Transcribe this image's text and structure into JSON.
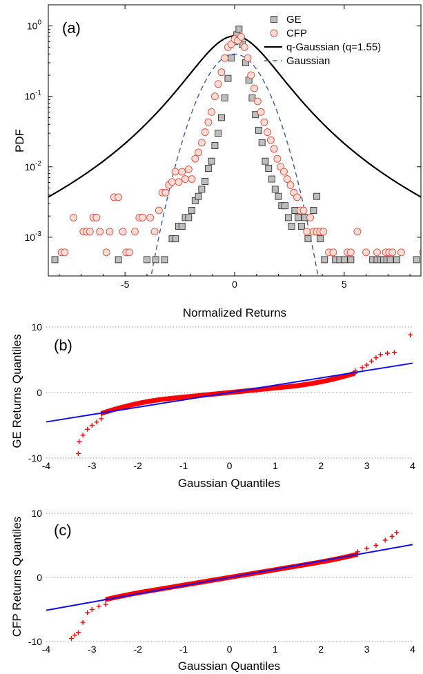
{
  "colors": {
    "ge_marker_fill": "#bdbdbd",
    "cfp_marker_fill": "#f7dcd6",
    "cfp_marker_edge": "#e04d3c",
    "qgauss": "#000000",
    "gauss": "#3b5ba8",
    "qq_points": "#ff0000",
    "qq_line": "#1010ee",
    "grid": "#9a9a9a"
  },
  "chart_data": [
    {
      "id": "a",
      "type": "scatter",
      "panel_label": "(a)",
      "xlabel": "Normalized Returns",
      "ylabel": "PDF",
      "xlim": [
        -8.5,
        8.5
      ],
      "ylim_log10": [
        -3.55,
        0.3
      ],
      "yscale": "log",
      "x_ticks": [
        {
          "v": -5,
          "label": "-5"
        },
        {
          "v": 0,
          "label": "0"
        },
        {
          "v": 5,
          "label": "5"
        }
      ],
      "y_ticks": [
        {
          "v": -3,
          "base": "10",
          "exp": "-3"
        },
        {
          "v": -2,
          "base": "10",
          "exp": "-2"
        },
        {
          "v": -1,
          "base": "10",
          "exp": "-1"
        },
        {
          "v": 0,
          "base": "10",
          "exp": "0"
        }
      ],
      "legend_position": "top-right",
      "series": [
        {
          "name": "GE",
          "kind": "square",
          "points": [
            [
              -8.2,
              0.00048
            ],
            [
              -5.3,
              0.00048
            ],
            [
              -4.0,
              0.00048
            ],
            [
              -3.6,
              0.00048
            ],
            [
              -3.2,
              0.00048
            ],
            [
              -2.85,
              0.00095
            ],
            [
              -2.7,
              0.00095
            ],
            [
              -2.55,
              0.00143
            ],
            [
              -2.4,
              0.00143
            ],
            [
              -2.25,
              0.0019
            ],
            [
              -2.1,
              0.0019
            ],
            [
              -1.95,
              0.0024
            ],
            [
              -1.8,
              0.0033
            ],
            [
              -1.65,
              0.0038
            ],
            [
              -1.5,
              0.0048
            ],
            [
              -1.35,
              0.0062
            ],
            [
              -1.2,
              0.0095
            ],
            [
              -1.05,
              0.012
            ],
            [
              -0.9,
              0.02
            ],
            [
              -0.75,
              0.03
            ],
            [
              -0.6,
              0.05
            ],
            [
              -0.45,
              0.095
            ],
            [
              -0.3,
              0.18
            ],
            [
              -0.15,
              0.35
            ],
            [
              0.0,
              0.6
            ],
            [
              0.1,
              0.75
            ],
            [
              0.2,
              0.9
            ],
            [
              0.35,
              0.55
            ],
            [
              0.5,
              0.3
            ],
            [
              0.65,
              0.17
            ],
            [
              0.8,
              0.095
            ],
            [
              0.95,
              0.055
            ],
            [
              1.1,
              0.033
            ],
            [
              1.25,
              0.022
            ],
            [
              1.4,
              0.012
            ],
            [
              1.55,
              0.0095
            ],
            [
              1.7,
              0.0067
            ],
            [
              1.85,
              0.0048
            ],
            [
              2.0,
              0.0038
            ],
            [
              2.15,
              0.0028
            ],
            [
              2.3,
              0.0028
            ],
            [
              2.45,
              0.0019
            ],
            [
              2.6,
              0.00143
            ],
            [
              2.75,
              0.0024
            ],
            [
              2.9,
              0.0019
            ],
            [
              3.05,
              0.00143
            ],
            [
              3.2,
              0.0019
            ],
            [
              3.35,
              0.00095
            ],
            [
              3.6,
              0.0024
            ],
            [
              3.75,
              0.0038
            ],
            [
              3.9,
              0.00095
            ],
            [
              4.1,
              0.00048
            ],
            [
              4.6,
              0.00048
            ],
            [
              4.8,
              0.00048
            ],
            [
              5.0,
              0.00048
            ],
            [
              5.3,
              0.00048
            ],
            [
              6.3,
              0.00048
            ],
            [
              6.5,
              0.00048
            ],
            [
              6.65,
              0.00048
            ],
            [
              6.8,
              0.00048
            ],
            [
              6.95,
              0.00048
            ],
            [
              7.1,
              0.00048
            ],
            [
              7.4,
              0.00048
            ],
            [
              8.3,
              0.00048
            ]
          ]
        },
        {
          "name": "CFP",
          "kind": "circle",
          "points": [
            [
              -7.9,
              0.00061
            ],
            [
              -7.75,
              0.00061
            ],
            [
              -7.35,
              0.0019
            ],
            [
              -6.9,
              0.0012
            ],
            [
              -6.75,
              0.0012
            ],
            [
              -6.6,
              0.0012
            ],
            [
              -6.45,
              0.0019
            ],
            [
              -6.3,
              0.0019
            ],
            [
              -6.15,
              0.0012
            ],
            [
              -5.85,
              0.00061
            ],
            [
              -5.7,
              0.0012
            ],
            [
              -5.5,
              0.0037
            ],
            [
              -5.3,
              0.0037
            ],
            [
              -5.1,
              0.0012
            ],
            [
              -4.95,
              0.00061
            ],
            [
              -4.8,
              0.00061
            ],
            [
              -4.55,
              0.0012
            ],
            [
              -4.35,
              0.0019
            ],
            [
              -4.2,
              0.0019
            ],
            [
              -3.85,
              0.0019
            ],
            [
              -3.65,
              0.0012
            ],
            [
              -3.45,
              0.0024
            ],
            [
              -3.3,
              0.0043
            ],
            [
              -3.15,
              0.0043
            ],
            [
              -3.0,
              0.0055
            ],
            [
              -2.85,
              0.0061
            ],
            [
              -2.7,
              0.0085
            ],
            [
              -2.55,
              0.0061
            ],
            [
              -2.4,
              0.0085
            ],
            [
              -2.25,
              0.0067
            ],
            [
              -2.1,
              0.0092
            ],
            [
              -1.95,
              0.0067
            ],
            [
              -1.8,
              0.013
            ],
            [
              -1.65,
              0.016
            ],
            [
              -1.5,
              0.022
            ],
            [
              -1.35,
              0.031
            ],
            [
              -1.2,
              0.043
            ],
            [
              -1.05,
              0.06
            ],
            [
              -0.9,
              0.1
            ],
            [
              -0.75,
              0.15
            ],
            [
              -0.6,
              0.22
            ],
            [
              -0.45,
              0.35
            ],
            [
              -0.3,
              0.5
            ],
            [
              -0.15,
              0.55
            ],
            [
              0.0,
              0.65
            ],
            [
              0.15,
              0.62
            ],
            [
              0.3,
              0.7
            ],
            [
              0.45,
              0.5
            ],
            [
              0.6,
              0.35
            ],
            [
              0.75,
              0.2
            ],
            [
              0.9,
              0.13
            ],
            [
              1.05,
              0.085
            ],
            [
              1.2,
              0.06
            ],
            [
              1.35,
              0.043
            ],
            [
              1.5,
              0.031
            ],
            [
              1.65,
              0.024
            ],
            [
              1.8,
              0.018
            ],
            [
              1.95,
              0.013
            ],
            [
              2.1,
              0.01
            ],
            [
              2.25,
              0.0085
            ],
            [
              2.4,
              0.0067
            ],
            [
              2.55,
              0.0055
            ],
            [
              2.7,
              0.0043
            ],
            [
              2.85,
              0.0037
            ],
            [
              3.0,
              0.0024
            ],
            [
              3.15,
              0.0024
            ],
            [
              3.3,
              0.0012
            ],
            [
              3.45,
              0.0019
            ],
            [
              3.6,
              0.0012
            ],
            [
              3.75,
              0.0012
            ],
            [
              3.9,
              0.0012
            ],
            [
              4.05,
              0.0012
            ],
            [
              4.3,
              0.00061
            ],
            [
              4.5,
              0.00061
            ],
            [
              5.15,
              0.00061
            ],
            [
              5.3,
              0.00061
            ],
            [
              5.6,
              0.0012
            ],
            [
              6.0,
              0.00061
            ],
            [
              6.5,
              0.00061
            ],
            [
              6.9,
              0.00061
            ],
            [
              7.05,
              0.00061
            ],
            [
              7.2,
              0.00061
            ],
            [
              7.6,
              0.00061
            ],
            [
              8.6,
              0.00061
            ]
          ]
        },
        {
          "name": "q-Gaussian (q=1.55)",
          "kind": "line",
          "q": 1.55,
          "peak": 0.72,
          "beta": 0.43
        },
        {
          "name": "Gaussian",
          "kind": "dashed",
          "mu": 0,
          "sigma": 1,
          "peak": 0.3989
        }
      ]
    },
    {
      "id": "b",
      "type": "scatter",
      "panel_label": "(b)",
      "xlabel": "Gaussian Quantiles",
      "ylabel": "GE Returns Quantiles",
      "xlim": [
        -4,
        4
      ],
      "ylim": [
        -10,
        10
      ],
      "grid": "dotted horizontal",
      "x_ticks": [
        -4,
        -3,
        -2,
        -1,
        0,
        1,
        2,
        3,
        4
      ],
      "y_ticks": [
        -10,
        0,
        10
      ],
      "fit_line": {
        "slope": 1.12,
        "intercept": 0
      },
      "tails": {
        "low": [
          [
            -3.3,
            -9.3
          ],
          [
            -3.28,
            -7.5
          ],
          [
            -3.2,
            -6.5
          ],
          [
            -3.1,
            -5.6
          ],
          [
            -3.0,
            -5.0
          ],
          [
            -2.9,
            -4.5
          ],
          [
            -2.8,
            -4.0
          ]
        ],
        "high": [
          [
            2.75,
            3.3
          ],
          [
            2.9,
            3.8
          ],
          [
            3.0,
            4.2
          ],
          [
            3.1,
            4.8
          ],
          [
            3.2,
            5.3
          ],
          [
            3.3,
            5.8
          ],
          [
            3.45,
            6.0
          ],
          [
            3.6,
            6.1
          ],
          [
            3.95,
            8.8
          ]
        ]
      },
      "body": {
        "scale": 0.7,
        "tail_start": 1.3,
        "tail_coef": 0.55,
        "asym_hi": 0.9
      }
    },
    {
      "id": "c",
      "type": "scatter",
      "panel_label": "(c)",
      "xlabel": "Gaussian Quantiles",
      "ylabel": "CFP Returns Quantiles",
      "xlim": [
        -4,
        4
      ],
      "ylim": [
        -10,
        10
      ],
      "grid": "dotted horizontal",
      "x_ticks": [
        -4,
        -3,
        -2,
        -1,
        0,
        1,
        2,
        3,
        4
      ],
      "y_ticks": [
        -10,
        0,
        10
      ],
      "fit_line": {
        "slope": 1.28,
        "intercept": 0
      },
      "tails": {
        "low": [
          [
            -3.45,
            -9.5
          ],
          [
            -3.38,
            -9.0
          ],
          [
            -3.3,
            -8.6
          ],
          [
            -3.2,
            -7.0
          ],
          [
            -3.1,
            -5.5
          ],
          [
            -3.0,
            -5.0
          ],
          [
            -2.85,
            -4.5
          ],
          [
            -2.7,
            -4.2
          ]
        ],
        "high": [
          [
            2.8,
            4.0
          ],
          [
            3.0,
            4.5
          ],
          [
            3.2,
            5.0
          ],
          [
            3.4,
            5.8
          ],
          [
            3.55,
            6.4
          ],
          [
            3.65,
            7.0
          ]
        ]
      },
      "body": {
        "scale": 1.2,
        "tail_start": 1.8,
        "tail_coef": 0.25,
        "asym_hi": 1.0
      }
    }
  ]
}
